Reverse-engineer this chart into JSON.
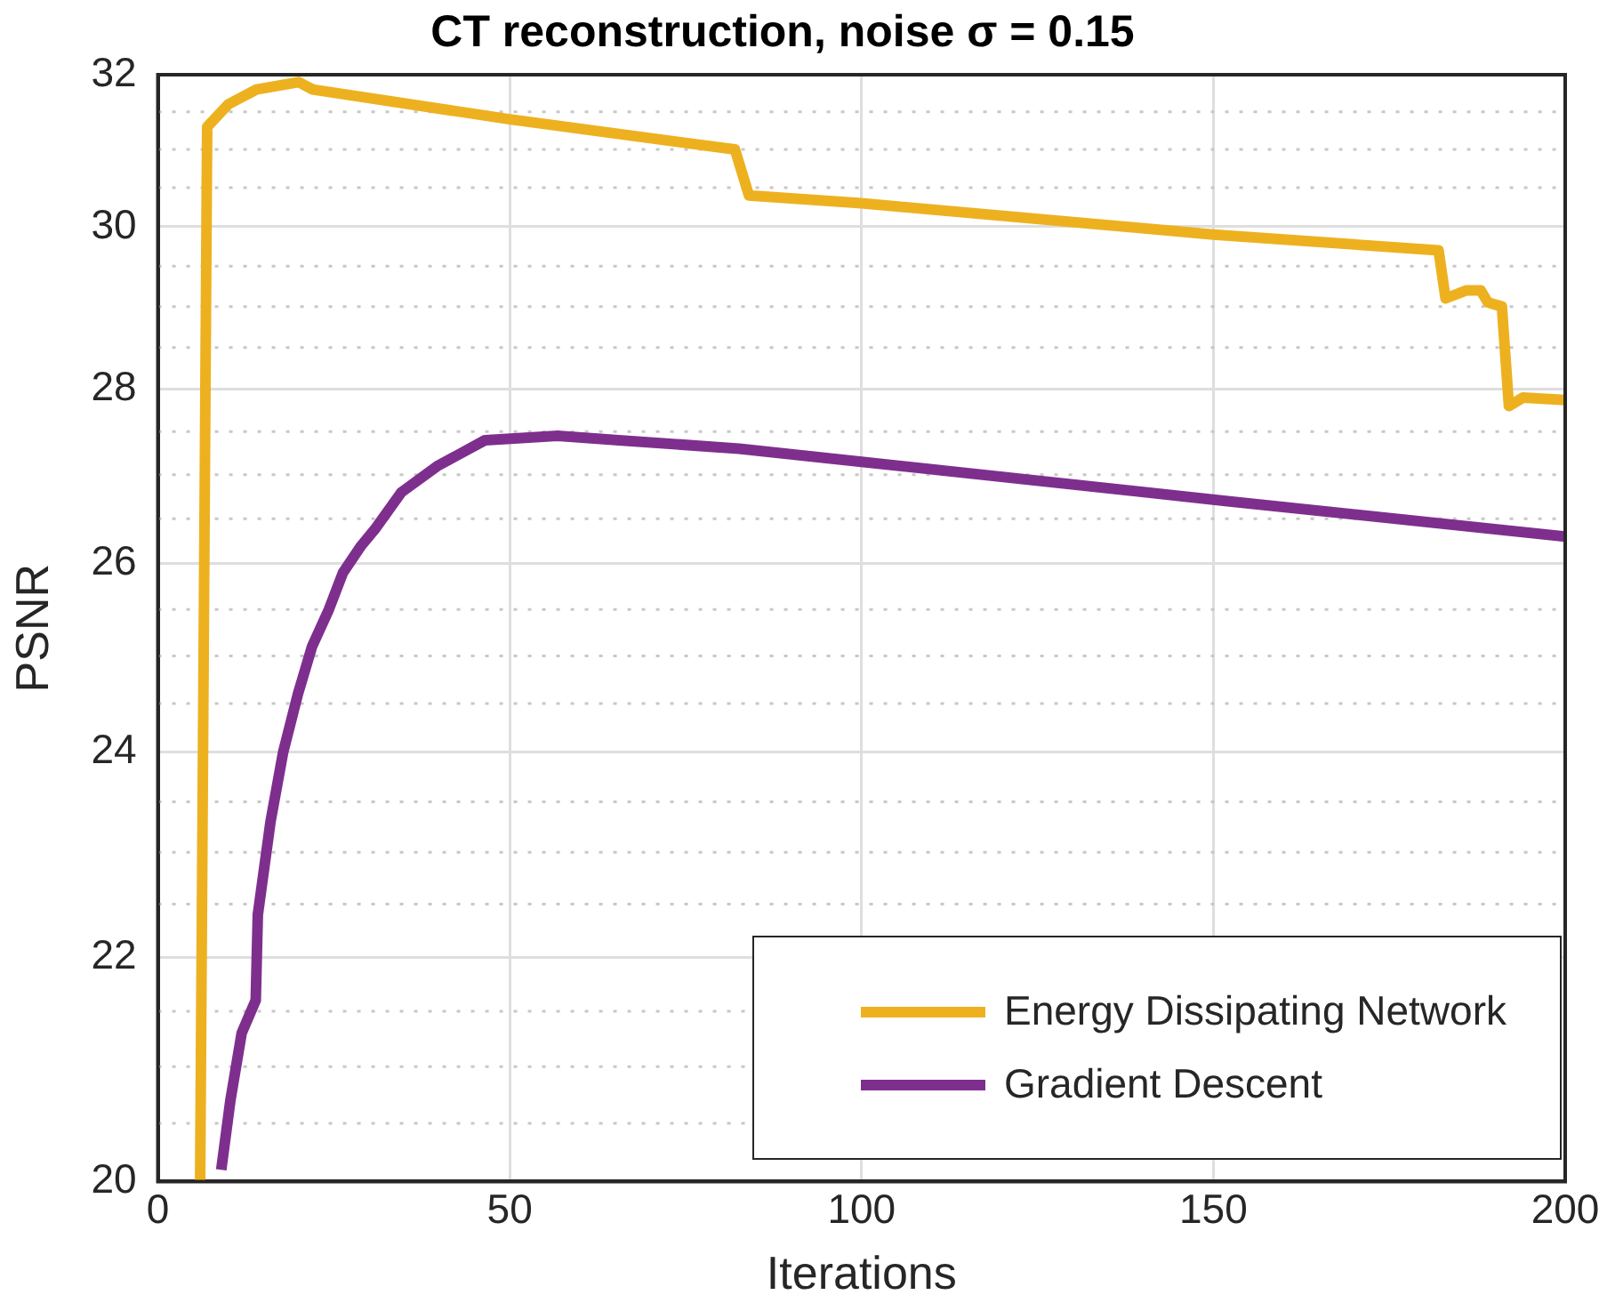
{
  "chart_data": {
    "type": "line",
    "title": "CT reconstruction, noise σ = 0.15",
    "xlabel": "Iterations",
    "ylabel": "PSNR",
    "log": "y",
    "grid": true,
    "legend": "bottom right",
    "line_style": "solid",
    "marker": "none",
    "xlim": [
      0,
      200
    ],
    "xticks": [
      0,
      50,
      100,
      150,
      200
    ],
    "ylim": [
      20,
      32
    ],
    "yticks": [
      20,
      {
        "value": 20.5,
        "label": null
      },
      {
        "value": 21,
        "label": null
      },
      {
        "value": 21.5,
        "label": null
      },
      22,
      {
        "value": 22.5,
        "label": null
      },
      {
        "value": 23,
        "label": null
      },
      {
        "value": 23.5,
        "label": null
      },
      24,
      {
        "value": 24.5,
        "label": null
      },
      {
        "value": 25,
        "label": null
      },
      {
        "value": 25.5,
        "label": null
      },
      26,
      {
        "value": 26.5,
        "label": null
      },
      {
        "value": 27,
        "label": null
      },
      {
        "value": 27.5,
        "label": null
      },
      28,
      {
        "value": 28.5,
        "label": null
      },
      {
        "value": 29,
        "label": null
      },
      {
        "value": 29.5,
        "label": null
      },
      30,
      {
        "value": 30.5,
        "label": null
      },
      {
        "value": 31,
        "label": null
      },
      {
        "value": 31.5,
        "label": null
      },
      32
    ],
    "series": [
      {
        "name": "Energy Dissipating Network",
        "color": "#edb120",
        "x": [
          6,
          7,
          10,
          14,
          20,
          22,
          50,
          82,
          84,
          100,
          150,
          182,
          183,
          186,
          188,
          189,
          191,
          192,
          194,
          200
        ],
        "values": [
          20,
          31.3,
          31.6,
          31.8,
          31.9,
          31.8,
          31.4,
          31.0,
          30.4,
          30.3,
          29.9,
          29.7,
          29.1,
          29.2,
          29.2,
          29.05,
          29.0,
          27.8,
          27.9,
          27.87
        ]
      },
      {
        "name": "Gradient Descent",
        "color": "#7e2f8e",
        "x": [
          9,
          10.3,
          11.9,
          13.9,
          14.2,
          16,
          17.8,
          19.9,
          21.9,
          24.3,
          26.3,
          28.9,
          31,
          34.6,
          39.7,
          46.5,
          56.8,
          65.5,
          82.6,
          100,
          152,
          200
        ],
        "values": [
          20.1,
          20.7,
          21.3,
          21.6,
          22.4,
          23.3,
          24.0,
          24.6,
          25.1,
          25.5,
          25.9,
          26.2,
          26.4,
          26.8,
          27.1,
          27.4,
          27.45,
          27.4,
          27.3,
          27.15,
          26.7,
          26.3
        ]
      }
    ]
  }
}
